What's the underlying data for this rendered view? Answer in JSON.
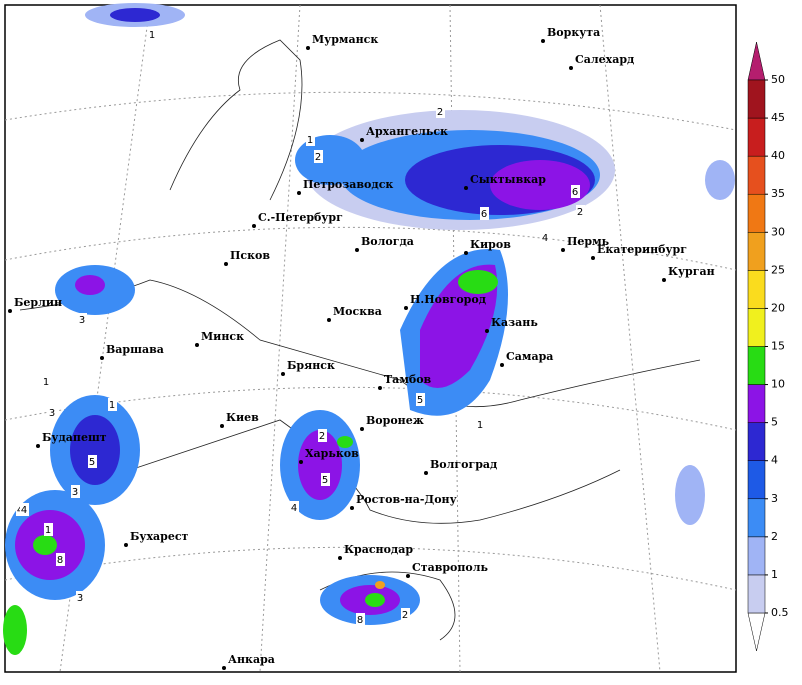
{
  "cities": [
    "Мурманск",
    "Воркута",
    "Салехард",
    "Архангельск",
    "Сыктывкар",
    "Петрозаводск",
    "С.-Петербург",
    "Вологда",
    "Киров",
    "Пермь",
    "Екатеринбург",
    "Курган",
    "Псков",
    "Берлин",
    "Н.Новгород",
    "Москва",
    "Казань",
    "Минск",
    "Варшава",
    "Самара",
    "Брянск",
    "Тамбов",
    "Киев",
    "Воронеж",
    "Будапешт",
    "Харьков",
    "Волгоград",
    "Ростов-на-Дону",
    "Бухарест",
    "Краснодар",
    "Ставрополь",
    "Анкара"
  ],
  "map_labels": [
    "1",
    "2",
    "1",
    "2",
    "3",
    "4",
    "5",
    "6",
    "5",
    "1",
    "3",
    "5",
    "4",
    "1",
    "6",
    "4",
    "2",
    "8",
    "3",
    "2",
    "1",
    "4",
    "1",
    "2",
    "8",
    "3"
  ],
  "colorbar": {
    "levels": [
      0.5,
      1,
      2,
      3,
      4,
      5,
      10,
      15,
      20,
      25,
      30,
      35,
      40,
      45,
      50
    ],
    "under_color": "#ffffff",
    "colors": [
      "#c8cdf0",
      "#a0b4f5",
      "#3c8cf5",
      "#1e5ae6",
      "#2d28d2",
      "#8c14e6",
      "#28dc14",
      "#f0f01e",
      "#fadc1e",
      "#f0a01e",
      "#f07814",
      "#e6501e",
      "#c81e1e",
      "#a0141e"
    ],
    "over_color": "#b41e6e"
  }
}
